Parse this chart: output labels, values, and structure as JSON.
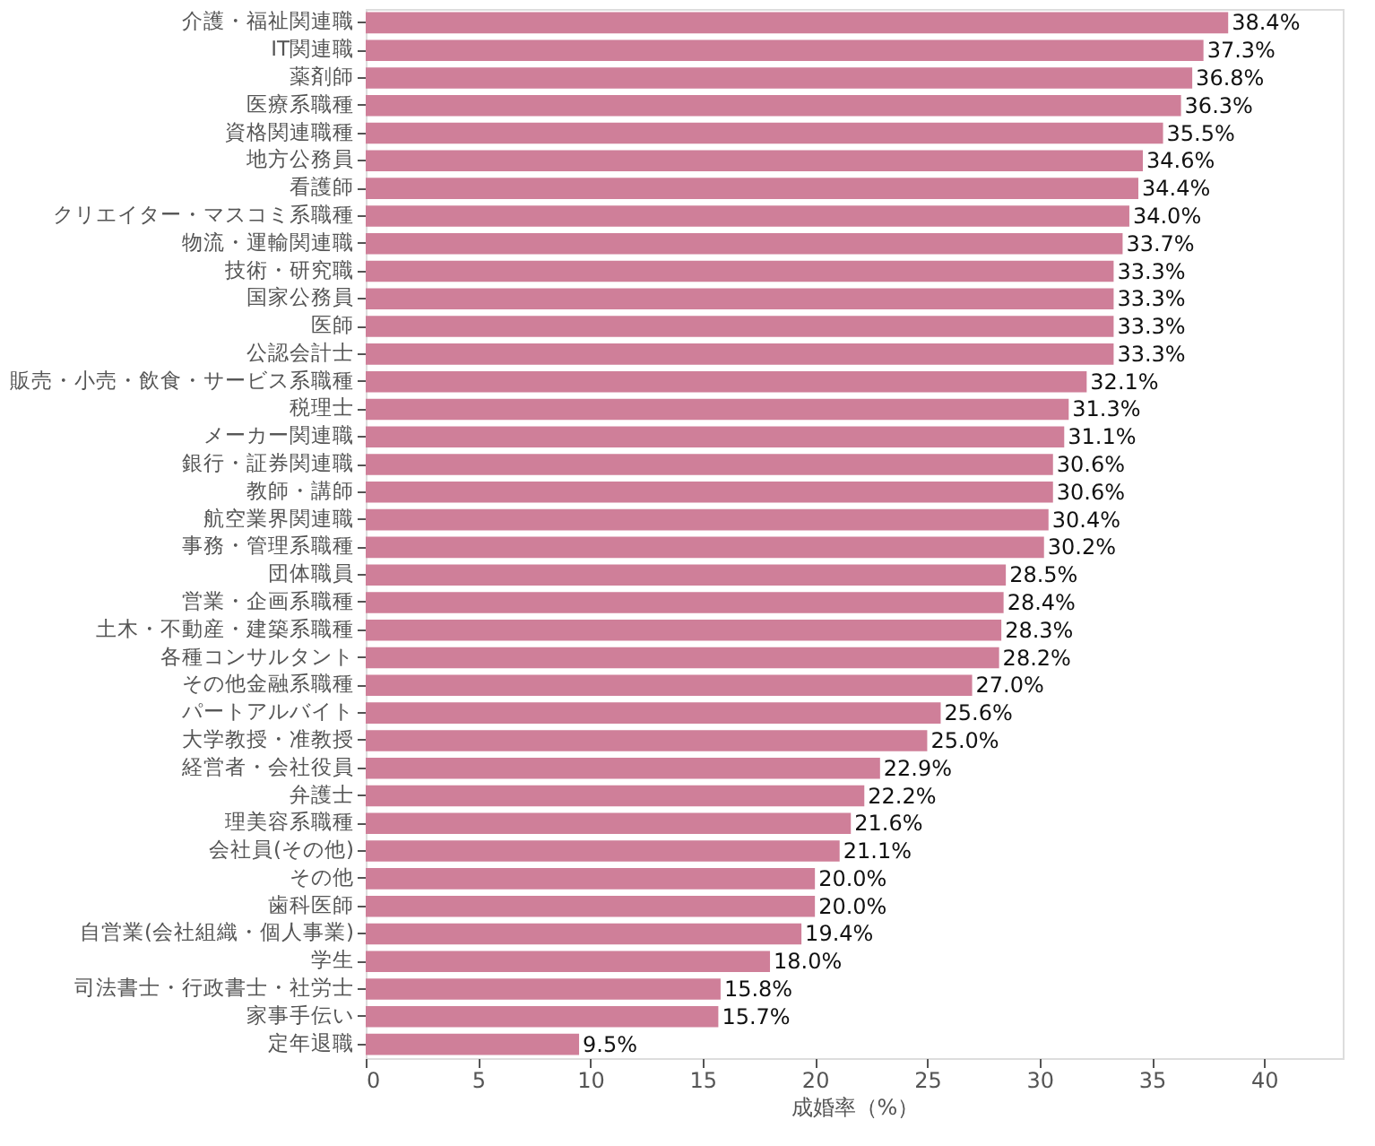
{
  "chart_data": {
    "type": "bar",
    "orientation": "horizontal",
    "xlabel": "成婚率（%）",
    "categories": [
      "介護・福祉関連職",
      "IT関連職",
      "薬剤師",
      "医療系職種",
      "資格関連職種",
      "地方公務員",
      "看護師",
      "クリエイター・マスコミ系職種",
      "物流・運輸関連職",
      "技術・研究職",
      "国家公務員",
      "医師",
      "公認会計士",
      "販売・小売・飲食・サービス系職種",
      "税理士",
      "メーカー関連職",
      "銀行・証券関連職",
      "教師・講師",
      "航空業界関連職",
      "事務・管理系職種",
      "団体職員",
      "営業・企画系職種",
      "土木・不動産・建築系職種",
      "各種コンサルタント",
      "その他金融系職種",
      "パートアルバイト",
      "大学教授・准教授",
      "経営者・会社役員",
      "弁護士",
      "理美容系職種",
      "会社員(その他)",
      "その他",
      "歯科医師",
      "自営業(会社組織・個人事業)",
      "学生",
      "司法書士・行政書士・社労士",
      "家事手伝い",
      "定年退職"
    ],
    "values": [
      38.4,
      37.3,
      36.8,
      36.3,
      35.5,
      34.6,
      34.4,
      34.0,
      33.7,
      33.3,
      33.3,
      33.3,
      33.3,
      32.1,
      31.3,
      31.1,
      30.6,
      30.6,
      30.4,
      30.2,
      28.5,
      28.4,
      28.3,
      28.2,
      27.0,
      25.6,
      25.0,
      22.9,
      22.2,
      21.6,
      21.1,
      20.0,
      20.0,
      19.4,
      18.0,
      15.8,
      15.7,
      9.5
    ],
    "value_labels": [
      "38.4%",
      "37.3%",
      "36.8%",
      "36.3%",
      "35.5%",
      "34.6%",
      "34.4%",
      "34.0%",
      "33.7%",
      "33.3%",
      "33.3%",
      "33.3%",
      "33.3%",
      "32.1%",
      "31.3%",
      "31.1%",
      "30.6%",
      "30.6%",
      "30.4%",
      "30.2%",
      "28.5%",
      "28.4%",
      "28.3%",
      "28.2%",
      "27.0%",
      "25.6%",
      "25.0%",
      "22.9%",
      "22.2%",
      "21.6%",
      "21.1%",
      "20.0%",
      "20.0%",
      "19.4%",
      "18.0%",
      "15.8%",
      "15.7%",
      "9.5%"
    ],
    "color": "#cf7f99",
    "xlim": [
      0,
      43.5
    ],
    "xticks": [
      0,
      5,
      10,
      15,
      20,
      25,
      30,
      35,
      40
    ],
    "grid": false
  }
}
